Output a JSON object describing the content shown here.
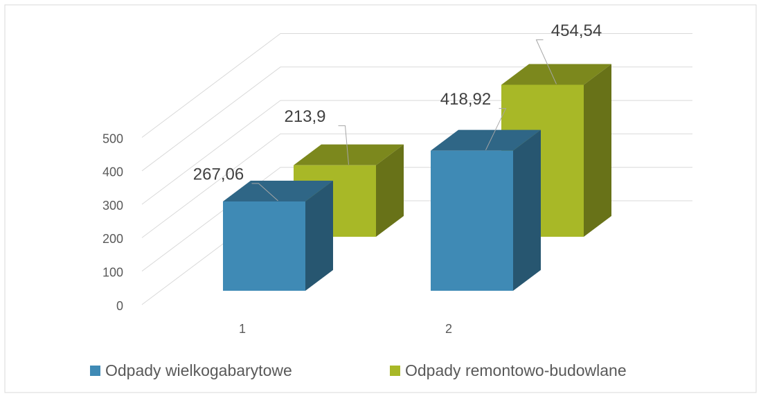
{
  "chart_data": {
    "type": "bar3d",
    "categories": [
      "1",
      "2"
    ],
    "series": [
      {
        "name": "Odpady wielkogabarytowe",
        "color": "#3f8ab5",
        "values": [
          267.06,
          418.92
        ],
        "value_labels": [
          "267,06",
          "418,92"
        ]
      },
      {
        "name": "Odpady remontowo-budowlane",
        "color": "#a8b827",
        "values": [
          213.9,
          454.54
        ],
        "value_labels": [
          "213,9",
          "454,54"
        ]
      }
    ],
    "ylim": [
      0,
      500
    ],
    "yticks": [
      0,
      100,
      200,
      300,
      400,
      500
    ],
    "grid": true,
    "legend": "bottom"
  }
}
